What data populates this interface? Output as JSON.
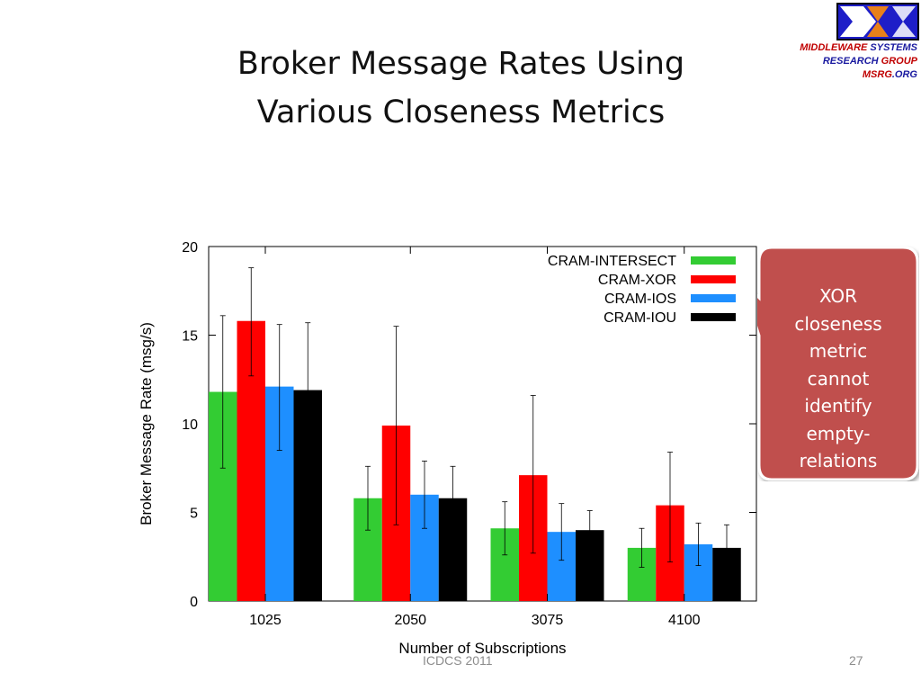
{
  "slide": {
    "title_line1": "Broker Message Rates Using",
    "title_line2": "Various Closeness Metrics",
    "footer_left": "ICDCS 2011",
    "page_number": "27"
  },
  "logo": {
    "line1_a": "MIDDLEWARE",
    "line1_b": "SYSTEMS",
    "line2_a": "RESEARCH",
    "line2_b": "GROUP",
    "line3_a": "MSRG",
    "line3_b": ".ORG"
  },
  "callout": {
    "lines": [
      "XOR",
      "closeness",
      "metric",
      "cannot",
      "identify",
      "empty-",
      "relations"
    ],
    "fill": "#c0504d"
  },
  "chart_data": {
    "type": "bar",
    "xlabel": "Number of Subscriptions",
    "ylabel": "Broker Message Rate (msg/s)",
    "ylim": [
      0,
      20
    ],
    "yticks": [
      "0",
      "5",
      "10",
      "15",
      "20"
    ],
    "categories": [
      "1025",
      "2050",
      "3075",
      "4100"
    ],
    "legend_position": "top-right",
    "grid": false,
    "series": [
      {
        "name": "CRAM-INTERSECT",
        "color": "#33cc33",
        "values": [
          11.8,
          5.8,
          4.1,
          3.0
        ],
        "err_low": [
          7.5,
          4.0,
          2.6,
          1.9
        ],
        "err_high": [
          16.1,
          7.6,
          5.6,
          4.1
        ]
      },
      {
        "name": "CRAM-XOR",
        "color": "#ff0000",
        "values": [
          15.8,
          9.9,
          7.1,
          5.4
        ],
        "err_low": [
          12.7,
          4.3,
          2.7,
          2.2
        ],
        "err_high": [
          18.8,
          15.5,
          11.6,
          8.4
        ]
      },
      {
        "name": "CRAM-IOS",
        "color": "#1e8fff",
        "values": [
          12.1,
          6.0,
          3.9,
          3.2
        ],
        "err_low": [
          8.5,
          4.1,
          2.3,
          2.0
        ],
        "err_high": [
          15.6,
          7.9,
          5.5,
          4.4
        ]
      },
      {
        "name": "CRAM-IOU",
        "color": "#000000",
        "values": [
          11.9,
          5.8,
          4.0,
          3.0
        ],
        "err_low": [
          8.0,
          4.0,
          2.8,
          1.8
        ],
        "err_high": [
          15.7,
          7.6,
          5.1,
          4.3
        ]
      }
    ]
  }
}
